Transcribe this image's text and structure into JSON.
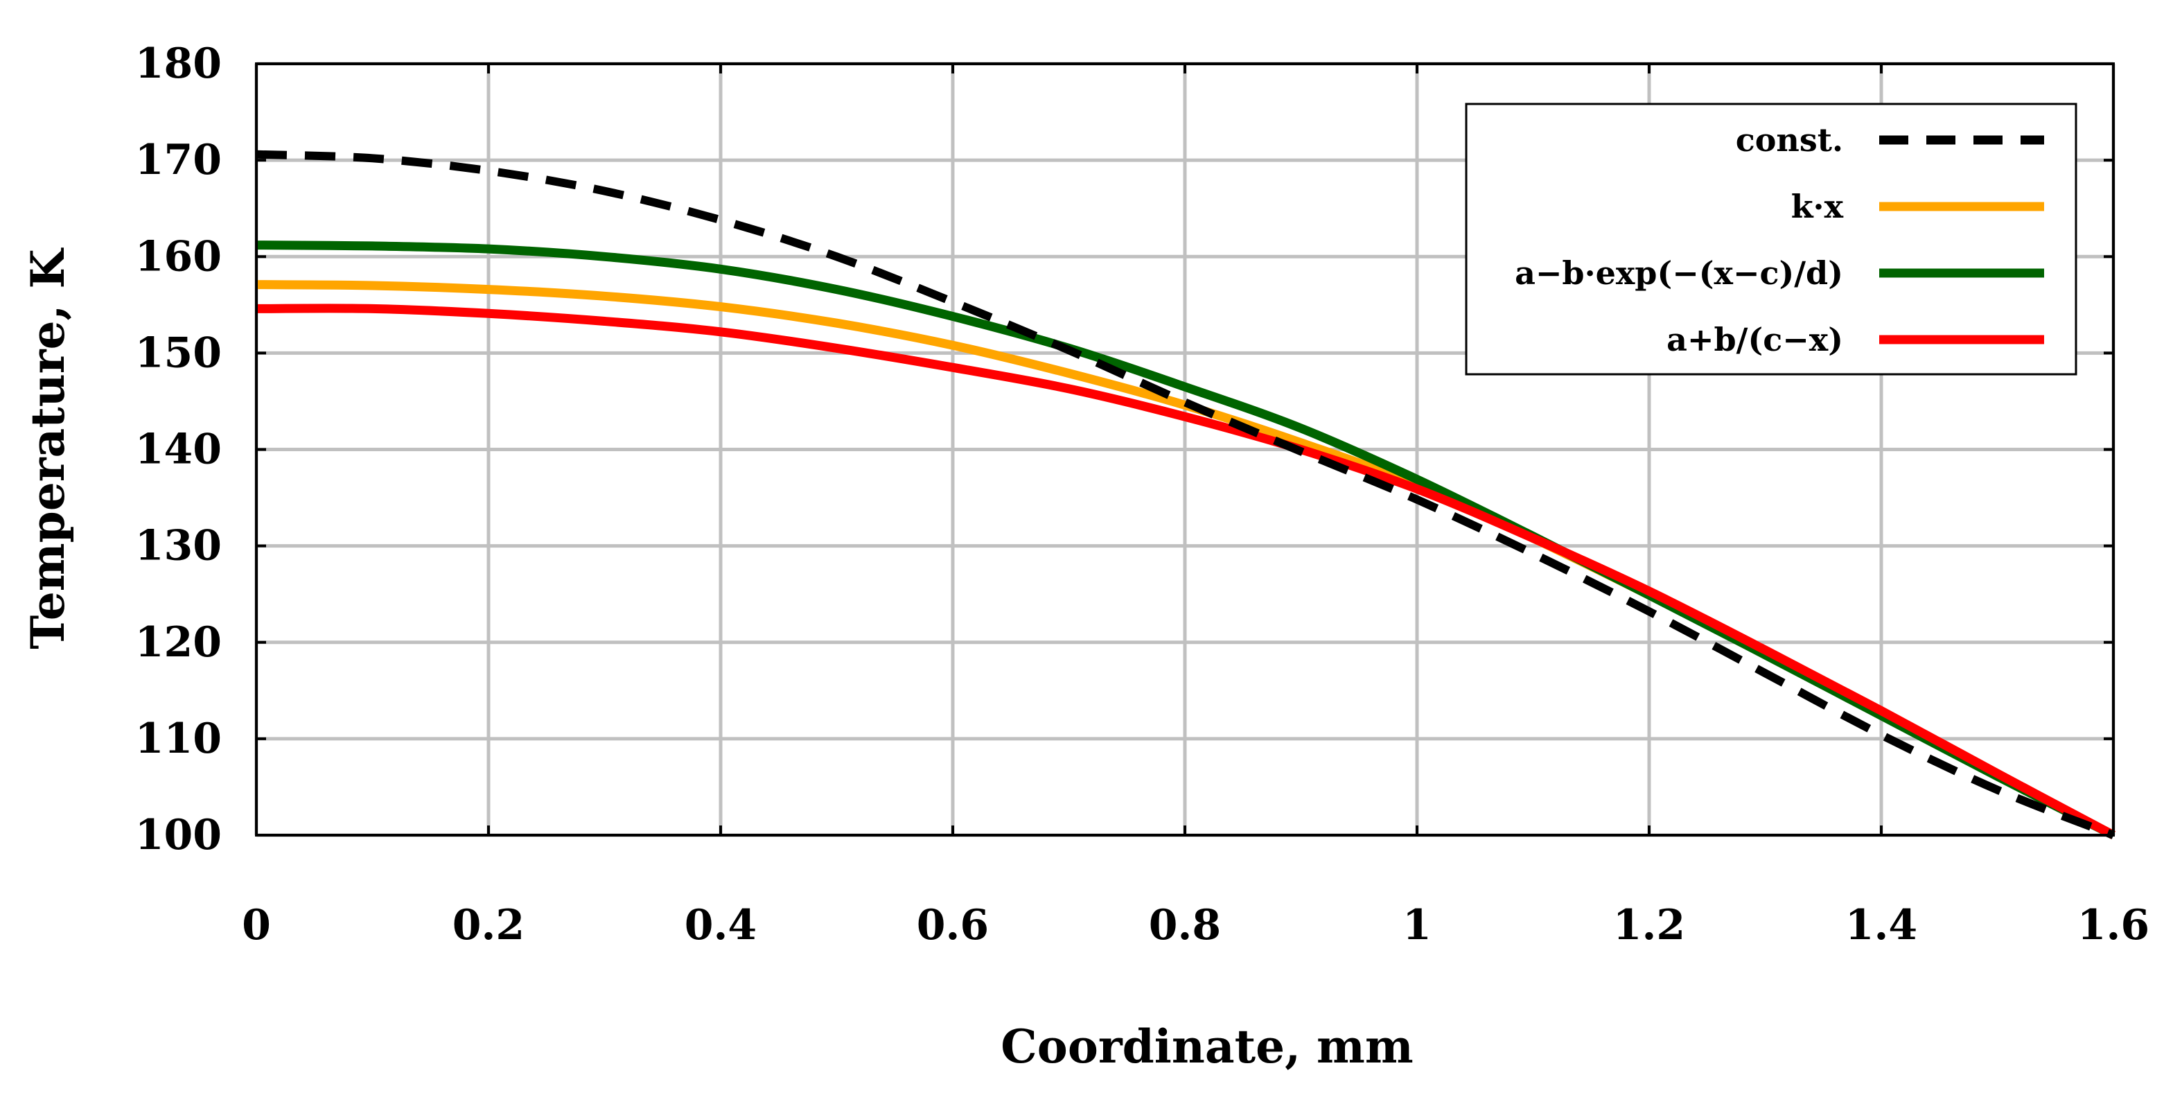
{
  "chart_data": {
    "type": "line",
    "title": "",
    "xlabel": "Coordinate, mm",
    "ylabel": "Temperature, K",
    "xlim": [
      0,
      1.6
    ],
    "ylim": [
      100,
      180
    ],
    "xticks": [
      0,
      0.2,
      0.4,
      0.6,
      0.8,
      1,
      1.2,
      1.4,
      1.6
    ],
    "xtick_labels": [
      "0",
      "0.2",
      "0.4",
      "0.6",
      "0.8",
      "1",
      "1.2",
      "1.4",
      "1.6"
    ],
    "yticks": [
      100,
      110,
      120,
      130,
      140,
      150,
      160,
      170,
      180
    ],
    "ytick_labels": [
      "100",
      "110",
      "120",
      "130",
      "140",
      "150",
      "160",
      "170",
      "180"
    ],
    "grid": true,
    "legend_position": "top-right",
    "series": [
      {
        "name": "const.",
        "color": "#000000",
        "style": "dashed",
        "x": [
          0,
          0.1,
          0.2,
          0.3,
          0.4,
          0.5,
          0.6,
          0.7,
          0.8,
          0.9,
          1.0,
          1.1,
          1.2,
          1.3,
          1.4,
          1.5,
          1.6
        ],
        "y": [
          170.6,
          170.2,
          168.9,
          166.8,
          163.8,
          160.0,
          155.3,
          150.3,
          144.9,
          139.8,
          134.8,
          129.2,
          123.2,
          116.8,
          110.4,
          104.7,
          100
        ]
      },
      {
        "name": "k·x",
        "color": "#FFA500",
        "style": "solid",
        "x": [
          0,
          0.1,
          0.2,
          0.3,
          0.4,
          0.5,
          0.6,
          0.7,
          0.8,
          0.9,
          1.0,
          1.1,
          1.2,
          1.3,
          1.4,
          1.5,
          1.6
        ],
        "y": [
          157.1,
          157.0,
          156.6,
          155.9,
          154.8,
          153.1,
          150.8,
          147.9,
          144.6,
          140.7,
          136.3,
          130.8,
          124.9,
          118.8,
          112.5,
          106.2,
          100
        ]
      },
      {
        "name": "a−b·exp(−(x−c)/d)",
        "color": "#006400",
        "style": "solid",
        "x": [
          0,
          0.1,
          0.2,
          0.3,
          0.4,
          0.5,
          0.6,
          0.7,
          0.8,
          0.9,
          1.0,
          1.1,
          1.2,
          1.3,
          1.4,
          1.5,
          1.6
        ],
        "y": [
          161.2,
          161.1,
          160.8,
          160.0,
          158.7,
          156.6,
          153.8,
          150.5,
          146.5,
          142.2,
          136.9,
          131.0,
          124.9,
          118.7,
          112.4,
          106.1,
          100
        ]
      },
      {
        "name": "a+b/(c−x)",
        "color": "#FF0000",
        "style": "solid",
        "x": [
          0,
          0.1,
          0.2,
          0.3,
          0.4,
          0.5,
          0.6,
          0.7,
          0.8,
          0.9,
          1.0,
          1.1,
          1.2,
          1.3,
          1.4,
          1.5,
          1.6
        ],
        "y": [
          154.6,
          154.6,
          154.1,
          153.3,
          152.2,
          150.5,
          148.5,
          146.3,
          143.4,
          140.0,
          135.9,
          130.8,
          125.3,
          119.2,
          112.9,
          106.4,
          100
        ]
      }
    ]
  }
}
